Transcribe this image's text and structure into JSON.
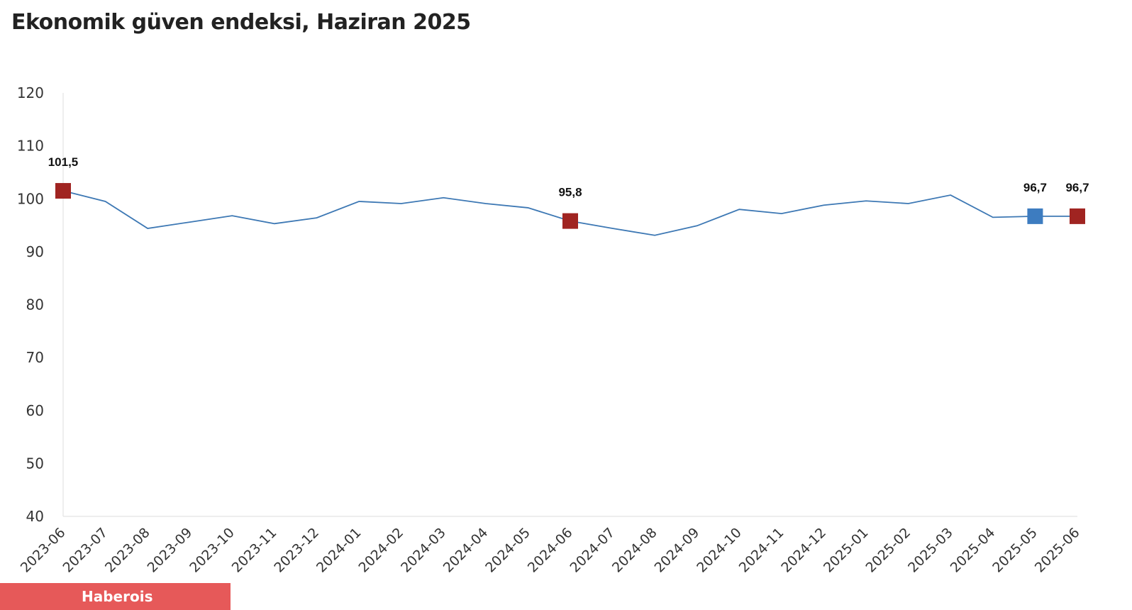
{
  "chart_data": {
    "type": "line",
    "title": "Ekonomik güven endeksi, Haziran 2025",
    "xlabel": "",
    "ylabel": "",
    "ylim": [
      40,
      120
    ],
    "yticks": [
      40,
      50,
      60,
      70,
      80,
      90,
      100,
      110,
      120
    ],
    "grid": false,
    "categories": [
      "2023-06",
      "2023-07",
      "2023-08",
      "2023-09",
      "2023-10",
      "2023-11",
      "2023-12",
      "2024-01",
      "2024-02",
      "2024-03",
      "2024-04",
      "2024-05",
      "2024-06",
      "2024-07",
      "2024-08",
      "2024-09",
      "2024-10",
      "2024-11",
      "2024-12",
      "2025-01",
      "2025-02",
      "2025-03",
      "2025-04",
      "2025-05",
      "2025-06"
    ],
    "series": [
      {
        "values": [
          101.5,
          99.5,
          94.4,
          95.6,
          96.8,
          95.3,
          96.4,
          99.5,
          99.1,
          100.2,
          99.1,
          98.3,
          95.8,
          94.4,
          93.1,
          94.9,
          98.0,
          97.2,
          98.8,
          99.6,
          99.1,
          100.7,
          96.5,
          96.7,
          96.7
        ],
        "color": "#3d78b4"
      }
    ],
    "highlighted_points": [
      {
        "category": "2023-06",
        "label": "101,5",
        "color": "#a02421"
      },
      {
        "category": "2024-06",
        "label": "95,8",
        "color": "#a02421"
      },
      {
        "category": "2025-05",
        "label": "96,7",
        "color": "#3d7cc0"
      },
      {
        "category": "2025-06",
        "label": "96,7",
        "color": "#a02421"
      }
    ]
  },
  "watermark": "Haberois"
}
